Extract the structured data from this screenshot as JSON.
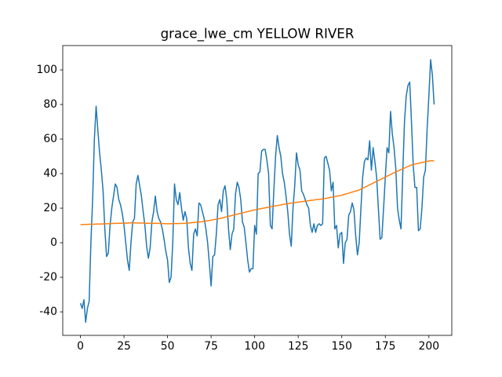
{
  "chart_data": {
    "type": "line",
    "title": "grace_lwe_cm YELLOW RIVER",
    "x": [
      0,
      1,
      2,
      3,
      4,
      5,
      6,
      7,
      8,
      9,
      10,
      11,
      12,
      13,
      14,
      15,
      16,
      17,
      18,
      19,
      20,
      21,
      22,
      23,
      24,
      25,
      26,
      27,
      28,
      29,
      30,
      31,
      32,
      33,
      34,
      35,
      36,
      37,
      38,
      39,
      40,
      41,
      42,
      43,
      44,
      45,
      46,
      47,
      48,
      49,
      50,
      51,
      52,
      53,
      54,
      55,
      56,
      57,
      58,
      59,
      60,
      61,
      62,
      63,
      64,
      65,
      66,
      67,
      68,
      69,
      70,
      71,
      72,
      73,
      74,
      75,
      76,
      77,
      78,
      79,
      80,
      81,
      82,
      83,
      84,
      85,
      86,
      87,
      88,
      89,
      90,
      91,
      92,
      93,
      94,
      95,
      96,
      97,
      98,
      99,
      100,
      101,
      102,
      103,
      104,
      105,
      106,
      107,
      108,
      109,
      110,
      111,
      112,
      113,
      114,
      115,
      116,
      117,
      118,
      119,
      120,
      121,
      122,
      123,
      124,
      125,
      126,
      127,
      128,
      129,
      130,
      131,
      132,
      133,
      134,
      135,
      136,
      137,
      138,
      139,
      140,
      141,
      142,
      143,
      144,
      145,
      146,
      147,
      148,
      149,
      150,
      151,
      152,
      153,
      154,
      155,
      156,
      157,
      158,
      159,
      160,
      161,
      162,
      163,
      164,
      165,
      166,
      167,
      168,
      169,
      170,
      171,
      172,
      173,
      174,
      175,
      176,
      177,
      178,
      179,
      180,
      181,
      182,
      183,
      184,
      185,
      186,
      187,
      188,
      189,
      190,
      191,
      192,
      193,
      194,
      195,
      196,
      197,
      198,
      199,
      200,
      201,
      202,
      203
    ],
    "series": [
      {
        "color": "#1f77b4",
        "values": [
          -35,
          -38,
          -33,
          -46,
          -38,
          -34,
          0,
          25,
          60,
          79,
          65,
          52,
          42,
          30,
          8,
          -8,
          -6,
          10,
          20,
          27,
          34,
          32,
          25,
          22,
          17,
          10,
          0,
          -10,
          -16,
          0,
          12,
          14,
          34,
          39,
          33,
          27,
          18,
          10,
          -2,
          -9,
          -3,
          12,
          18,
          27,
          18,
          14,
          12,
          8,
          2,
          -5,
          -10,
          -23,
          -20,
          0,
          34,
          25,
          22,
          29,
          20,
          13,
          18,
          14,
          -3,
          -12,
          -16,
          5,
          8,
          4,
          23,
          22,
          18,
          14,
          8,
          0,
          -12,
          -25,
          -8,
          -7,
          5,
          22,
          25,
          18,
          30,
          33,
          25,
          8,
          -4,
          5,
          8,
          28,
          35,
          32,
          25,
          12,
          9,
          0,
          -10,
          -17,
          -15,
          -15,
          10,
          5,
          40,
          41,
          53,
          54,
          54,
          48,
          40,
          10,
          8,
          30,
          50,
          62,
          55,
          50,
          40,
          35,
          27,
          18,
          5,
          -2,
          20,
          33,
          52,
          45,
          42,
          30,
          28,
          25,
          22,
          20,
          10,
          6,
          11,
          6,
          10,
          11,
          10,
          11,
          49,
          50,
          46,
          42,
          30,
          35,
          8,
          10,
          -3,
          5,
          6,
          -12,
          0,
          2,
          16,
          18,
          23,
          19,
          4,
          -7,
          0,
          20,
          38,
          47,
          49,
          48,
          59,
          42,
          55,
          47,
          38,
          20,
          2,
          3,
          20,
          38,
          55,
          52,
          76,
          63,
          55,
          43,
          20,
          13,
          8,
          40,
          70,
          85,
          91,
          93,
          70,
          45,
          32,
          32,
          7,
          8,
          20,
          38,
          42,
          66,
          85,
          106,
          97,
          80
        ]
      },
      {
        "color": "#ff7f0e",
        "values": [
          10.5,
          10.5,
          10.6,
          10.6,
          10.6,
          10.7,
          10.7,
          10.7,
          10.7,
          10.8,
          10.8,
          10.8,
          10.9,
          10.9,
          11.0,
          11.0,
          11.0,
          11.1,
          11.1,
          11.2,
          11.2,
          11.2,
          11.3,
          11.3,
          11.3,
          11.4,
          11.4,
          11.4,
          11.5,
          11.5,
          11.5,
          11.5,
          11.5,
          11.4,
          11.4,
          11.4,
          11.4,
          11.4,
          11.3,
          11.3,
          11.3,
          11.3,
          11.2,
          11.2,
          11.2,
          11.2,
          11.1,
          11.1,
          11.1,
          11.0,
          11.0,
          11.0,
          11.0,
          11.1,
          11.1,
          11.1,
          11.1,
          11.1,
          11.2,
          11.2,
          11.2,
          11.3,
          11.4,
          11.5,
          11.6,
          11.7,
          11.8,
          11.9,
          12.0,
          12.1,
          12.2,
          12.4,
          12.6,
          12.7,
          12.9,
          13.1,
          13.3,
          13.5,
          13.6,
          13.8,
          14.0,
          14.3,
          14.5,
          14.8,
          15.0,
          15.3,
          15.5,
          15.8,
          16.0,
          16.3,
          16.5,
          16.8,
          17.0,
          17.3,
          17.5,
          17.8,
          18.0,
          18.3,
          18.5,
          18.8,
          19.0,
          19.2,
          19.4,
          19.6,
          19.8,
          20.0,
          20.2,
          20.4,
          20.6,
          20.8,
          21.0,
          21.2,
          21.4,
          21.5,
          21.7,
          21.9,
          22.1,
          22.3,
          22.4,
          22.6,
          22.8,
          22.9,
          23.1,
          23.2,
          23.4,
          23.5,
          23.6,
          23.8,
          23.9,
          24.1,
          24.2,
          24.3,
          24.5,
          24.6,
          24.7,
          24.9,
          25.0,
          25.1,
          25.2,
          25.4,
          25.5,
          25.7,
          25.9,
          26.1,
          26.3,
          26.5,
          26.7,
          26.9,
          27.1,
          27.3,
          27.5,
          27.8,
          28.1,
          28.4,
          28.7,
          29.0,
          29.3,
          29.6,
          29.9,
          30.2,
          30.5,
          31.0,
          31.5,
          32.0,
          32.5,
          33.0,
          33.5,
          34.0,
          34.5,
          35.0,
          35.5,
          36.0,
          36.5,
          37.0,
          37.5,
          38.0,
          38.5,
          39.0,
          39.5,
          40.0,
          40.5,
          41.0,
          41.4,
          41.9,
          42.3,
          42.8,
          43.2,
          43.7,
          44.1,
          44.6,
          45.0,
          45.2,
          45.5,
          45.7,
          45.9,
          46.2,
          46.4,
          46.6,
          46.8,
          47.1,
          47.3,
          47.4,
          47.4,
          47.5
        ]
      }
    ],
    "xlim": [
      -10.15,
      213.15
    ],
    "xticks": [
      0,
      25,
      50,
      75,
      100,
      125,
      150,
      175,
      200
    ],
    "ylim": [
      -53.6,
      114.1
    ],
    "yticks": [
      -40,
      -20,
      0,
      20,
      40,
      60,
      80,
      100
    ]
  }
}
